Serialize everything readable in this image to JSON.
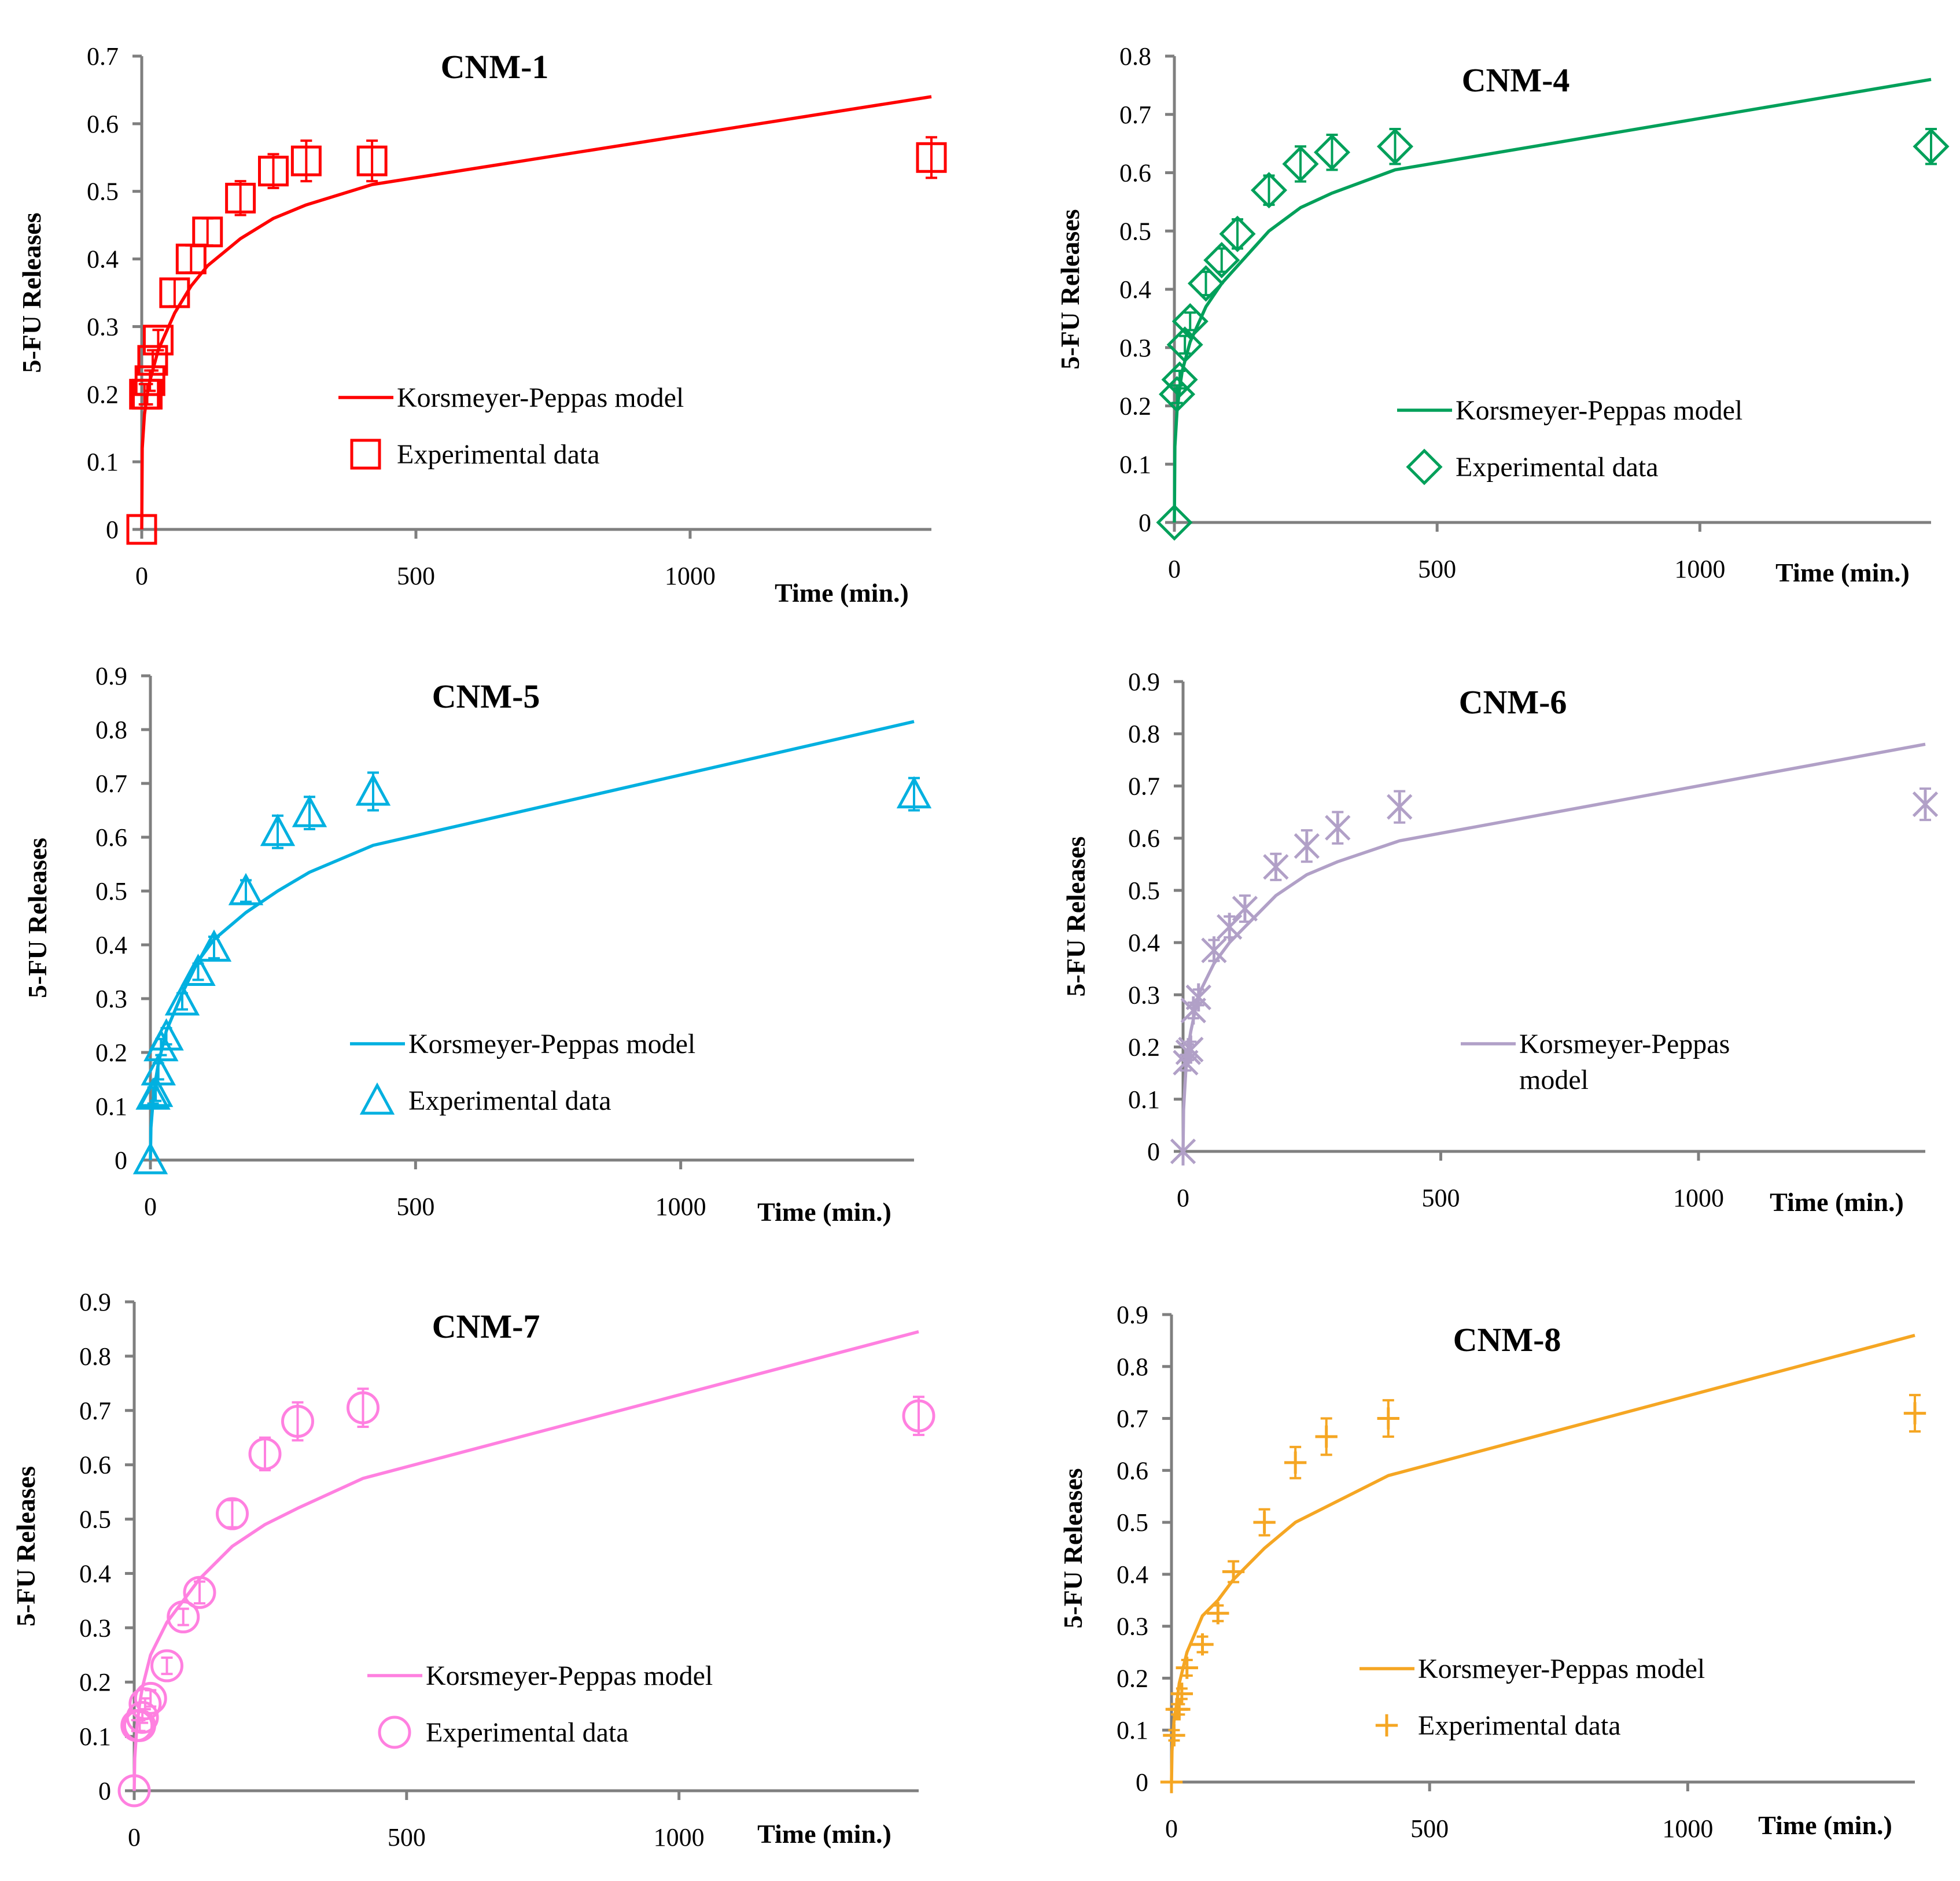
{
  "chart_data": [
    {
      "type": "scatter",
      "title": "CNM-1",
      "xlabel": "Time (min.)",
      "ylabel": "5-FU Releases",
      "color": "#ff0000",
      "marker": "square",
      "xlim": [
        0,
        1440
      ],
      "ylim": [
        0,
        0.7
      ],
      "x_ticks": [
        0,
        500,
        1000
      ],
      "y_ticks": [
        0,
        0.1,
        0.2,
        0.3,
        0.4,
        0.5,
        0.6,
        0.7
      ],
      "y_tick_labels": [
        "0",
        "0.1",
        "0.2",
        "0.3",
        "0.4",
        "0.5",
        "0.6",
        "0.7"
      ],
      "legend": {
        "model": "Korsmeyer-Peppas model",
        "data": "Experimental data"
      },
      "model_x": [
        0,
        1,
        5,
        10,
        15,
        30,
        60,
        90,
        120,
        180,
        240,
        300,
        420,
        1440
      ],
      "model_y": [
        0,
        0.12,
        0.17,
        0.2,
        0.22,
        0.265,
        0.32,
        0.36,
        0.39,
        0.43,
        0.46,
        0.48,
        0.51,
        0.64
      ],
      "data_x": [
        0,
        5,
        10,
        15,
        20,
        30,
        60,
        90,
        120,
        180,
        240,
        300,
        420,
        1440
      ],
      "data_y": [
        0,
        0.2,
        0.2,
        0.22,
        0.25,
        0.28,
        0.35,
        0.4,
        0.44,
        0.49,
        0.53,
        0.545,
        0.545,
        0.55
      ],
      "error": [
        0,
        0.015,
        0.015,
        0.015,
        0.015,
        0.015,
        0.02,
        0.02,
        0.02,
        0.025,
        0.025,
        0.03,
        0.03,
        0.03
      ]
    },
    {
      "type": "scatter",
      "title": "CNM-4",
      "xlabel": "Time (min.)",
      "ylabel": "5-FU Releases",
      "color": "#00a05a",
      "marker": "diamond",
      "xlim": [
        0,
        1440
      ],
      "ylim": [
        0,
        0.8
      ],
      "x_ticks": [
        0,
        500,
        1000
      ],
      "y_ticks": [
        0,
        0.1,
        0.2,
        0.3,
        0.4,
        0.5,
        0.6,
        0.7,
        0.8
      ],
      "y_tick_labels": [
        "0",
        "0.1",
        "0.2",
        "0.3",
        "0.4",
        "0.5",
        "0.6",
        "0.7",
        "0.8"
      ],
      "legend": {
        "model": "Korsmeyer-Peppas model",
        "data": "Experimental data"
      },
      "model_x": [
        0,
        1,
        5,
        10,
        15,
        30,
        60,
        90,
        120,
        180,
        240,
        300,
        420,
        1440
      ],
      "model_y": [
        0,
        0.13,
        0.19,
        0.23,
        0.26,
        0.31,
        0.37,
        0.41,
        0.44,
        0.5,
        0.54,
        0.565,
        0.605,
        0.76
      ],
      "data_x": [
        0,
        5,
        10,
        20,
        30,
        60,
        90,
        120,
        180,
        240,
        300,
        420,
        1440
      ],
      "data_y": [
        0,
        0.22,
        0.245,
        0.305,
        0.345,
        0.41,
        0.45,
        0.495,
        0.57,
        0.615,
        0.635,
        0.645,
        0.645
      ],
      "error": [
        0,
        0.015,
        0.015,
        0.015,
        0.015,
        0.02,
        0.02,
        0.025,
        0.025,
        0.03,
        0.03,
        0.03,
        0.03
      ]
    },
    {
      "type": "scatter",
      "title": "CNM-5",
      "xlabel": "Time (min.)",
      "ylabel": "5-FU Releases",
      "color": "#00b0e0",
      "marker": "triangle",
      "xlim": [
        0,
        1440
      ],
      "ylim": [
        0,
        0.9
      ],
      "x_ticks": [
        0,
        500,
        1000
      ],
      "y_ticks": [
        0,
        0.1,
        0.2,
        0.3,
        0.4,
        0.5,
        0.6,
        0.7,
        0.8,
        0.9
      ],
      "y_tick_labels": [
        "0",
        "0.1",
        "0.2",
        "0.3",
        "0.4",
        "0.5",
        "0.6",
        "0.7",
        "0.8",
        "0.9"
      ],
      "legend": {
        "model": "Korsmeyer-Peppas model",
        "data": "Experimental data"
      },
      "model_x": [
        0,
        1,
        5,
        10,
        15,
        30,
        60,
        90,
        120,
        180,
        240,
        300,
        420,
        1440
      ],
      "model_y": [
        0,
        0.06,
        0.11,
        0.15,
        0.18,
        0.24,
        0.31,
        0.37,
        0.41,
        0.46,
        0.5,
        0.535,
        0.585,
        0.815
      ],
      "data_x": [
        0,
        5,
        10,
        15,
        20,
        30,
        60,
        90,
        120,
        180,
        240,
        300,
        420,
        1440
      ],
      "data_y": [
        0,
        0.12,
        0.125,
        0.165,
        0.21,
        0.23,
        0.295,
        0.35,
        0.395,
        0.5,
        0.61,
        0.645,
        0.685,
        0.68
      ],
      "error": [
        0,
        0.015,
        0.015,
        0.015,
        0.015,
        0.015,
        0.015,
        0.015,
        0.02,
        0.02,
        0.03,
        0.03,
        0.035,
        0.03
      ]
    },
    {
      "type": "scatter",
      "title": "CNM-6",
      "xlabel": "Time (min.)",
      "ylabel": "5-FU Releases",
      "color": "#b1a0c7",
      "marker": "asterisk",
      "xlim": [
        0,
        1440
      ],
      "ylim": [
        0,
        0.9
      ],
      "x_ticks": [
        0,
        500,
        1000
      ],
      "y_ticks": [
        0,
        0.1,
        0.2,
        0.3,
        0.4,
        0.5,
        0.6,
        0.7,
        0.8,
        0.9
      ],
      "y_tick_labels": [
        "0",
        "0.1",
        "0.2",
        "0.3",
        "0.4",
        "0.5",
        "0.6",
        "0.7",
        "0.8",
        "0.9"
      ],
      "legend": {
        "model": "Korsmeyer-Peppas",
        "model2": "model"
      },
      "model_x": [
        0,
        1,
        5,
        10,
        15,
        30,
        60,
        90,
        120,
        180,
        240,
        300,
        420,
        1440
      ],
      "model_y": [
        0,
        0.08,
        0.15,
        0.2,
        0.23,
        0.3,
        0.36,
        0.4,
        0.43,
        0.49,
        0.53,
        0.555,
        0.595,
        0.78
      ],
      "data_x": [
        0,
        5,
        10,
        15,
        20,
        30,
        60,
        90,
        120,
        180,
        240,
        300,
        420,
        1440
      ],
      "data_y": [
        0,
        0.17,
        0.19,
        0.195,
        0.27,
        0.295,
        0.385,
        0.43,
        0.465,
        0.545,
        0.585,
        0.62,
        0.66,
        0.665
      ],
      "error": [
        0,
        0.015,
        0.015,
        0.015,
        0.015,
        0.015,
        0.02,
        0.02,
        0.025,
        0.025,
        0.03,
        0.03,
        0.03,
        0.03
      ]
    },
    {
      "type": "scatter",
      "title": "CNM-7",
      "xlabel": "Time (min.)",
      "ylabel": "5-FU Releases",
      "color": "#ff80e0",
      "marker": "circle",
      "xlim": [
        0,
        1440
      ],
      "ylim": [
        0,
        0.9
      ],
      "x_ticks": [
        0,
        500,
        1000
      ],
      "y_ticks": [
        0,
        0.1,
        0.2,
        0.3,
        0.4,
        0.5,
        0.6,
        0.7,
        0.8,
        0.9
      ],
      "y_tick_labels": [
        "0",
        "0.1",
        "0.2",
        "0.3",
        "0.4",
        "0.5",
        "0.6",
        "0.7",
        "0.8",
        "0.9"
      ],
      "legend": {
        "model": "Korsmeyer-Peppas model",
        "data": "Experimental data"
      },
      "model_x": [
        0,
        1,
        5,
        10,
        15,
        30,
        60,
        90,
        120,
        180,
        240,
        300,
        420,
        1440
      ],
      "model_y": [
        0,
        0.06,
        0.12,
        0.16,
        0.19,
        0.25,
        0.31,
        0.35,
        0.39,
        0.45,
        0.49,
        0.52,
        0.575,
        0.845
      ],
      "data_x": [
        0,
        5,
        10,
        15,
        20,
        30,
        60,
        90,
        120,
        180,
        240,
        300,
        420,
        1440
      ],
      "data_y": [
        0,
        0.12,
        0.12,
        0.135,
        0.16,
        0.17,
        0.23,
        0.32,
        0.365,
        0.51,
        0.62,
        0.68,
        0.705,
        0.69
      ],
      "error": [
        0,
        0.01,
        0.01,
        0.01,
        0.01,
        0.015,
        0.015,
        0.015,
        0.02,
        0.025,
        0.03,
        0.035,
        0.035,
        0.035
      ]
    },
    {
      "type": "scatter",
      "title": "CNM-8",
      "xlabel": "Time (min.)",
      "ylabel": "5-FU Releases",
      "color": "#f5a623",
      "marker": "plus",
      "xlim": [
        0,
        1440
      ],
      "ylim": [
        0,
        0.9
      ],
      "x_ticks": [
        0,
        500,
        1000
      ],
      "y_ticks": [
        0,
        0.1,
        0.2,
        0.3,
        0.4,
        0.5,
        0.6,
        0.7,
        0.8,
        0.9
      ],
      "y_tick_labels": [
        "0",
        "0.1",
        "0.2",
        "0.3",
        "0.4",
        "0.5",
        "0.6",
        "0.7",
        "0.8",
        "0.9"
      ],
      "legend": {
        "model": "Korsmeyer-Peppas model",
        "data": "Experimental data"
      },
      "model_x": [
        0,
        1,
        5,
        10,
        15,
        30,
        60,
        90,
        120,
        180,
        240,
        300,
        420,
        1440
      ],
      "model_y": [
        0,
        0.06,
        0.12,
        0.15,
        0.19,
        0.25,
        0.32,
        0.35,
        0.39,
        0.45,
        0.5,
        0.53,
        0.59,
        0.86
      ],
      "data_x": [
        0,
        5,
        10,
        15,
        20,
        30,
        60,
        90,
        120,
        180,
        240,
        300,
        420,
        1440
      ],
      "data_y": [
        0,
        0.09,
        0.14,
        0.14,
        0.17,
        0.22,
        0.265,
        0.325,
        0.405,
        0.5,
        0.615,
        0.665,
        0.7,
        0.71
      ],
      "error": [
        0,
        0.01,
        0.01,
        0.01,
        0.01,
        0.015,
        0.015,
        0.015,
        0.02,
        0.025,
        0.03,
        0.035,
        0.035,
        0.035
      ]
    }
  ]
}
